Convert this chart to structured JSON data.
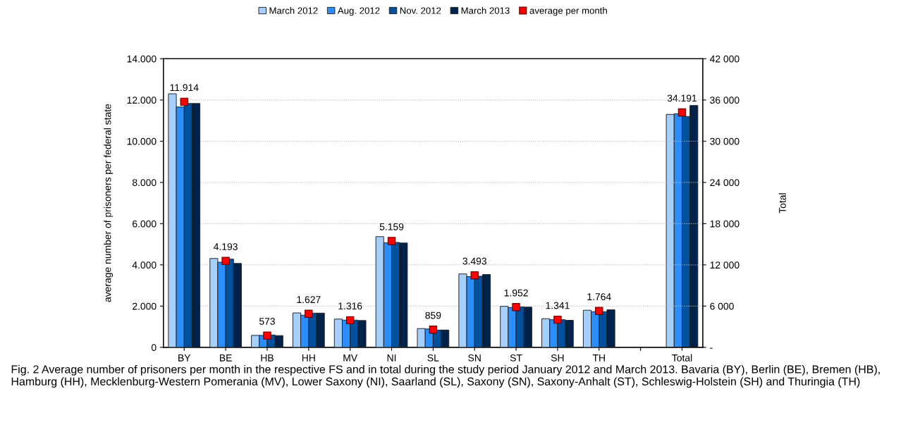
{
  "chart_data": {
    "type": "bar",
    "categories": [
      "BY",
      "BE",
      "HB",
      "HH",
      "MV",
      "NI",
      "SL",
      "SN",
      "ST",
      "SH",
      "TH",
      null,
      "Total"
    ],
    "ylabel": "average number of prisoners per federal state",
    "y2label": "Total",
    "ylim": [
      0,
      14000
    ],
    "yticks": [
      {
        "value": 0,
        "label": "0"
      },
      {
        "value": 2000,
        "label": "2.000"
      },
      {
        "value": 4000,
        "label": "4.000"
      },
      {
        "value": 6000,
        "label": "6.000"
      },
      {
        "value": 8000,
        "label": "8.000"
      },
      {
        "value": 10000,
        "label": "10.000"
      },
      {
        "value": 12000,
        "label": "12.000"
      },
      {
        "value": 14000,
        "label": "14.000"
      }
    ],
    "y2lim": [
      0,
      42000
    ],
    "y2ticks": [
      {
        "value": 0,
        "label": "-"
      },
      {
        "value": 6000,
        "label": "6 000"
      },
      {
        "value": 12000,
        "label": "12 000"
      },
      {
        "value": 18000,
        "label": "18 000"
      },
      {
        "value": 24000,
        "label": "24 000"
      },
      {
        "value": 30000,
        "label": "30 000"
      },
      {
        "value": 36000,
        "label": "36 000"
      },
      {
        "value": 42000,
        "label": "42 000"
      }
    ],
    "grid": "y",
    "legend": "top",
    "series": [
      {
        "name": "March 2012",
        "color": "#a6d0fb",
        "axis": "y",
        "values": [
          12300,
          4310,
          580,
          1670,
          1370,
          5370,
          910,
          3560,
          1990,
          1390,
          1800,
          null,
          null
        ]
      },
      {
        "name": "Aug. 2012",
        "color": "#2a8ffc",
        "axis": "y",
        "values": [
          11660,
          4130,
          580,
          1560,
          1320,
          5070,
          890,
          3430,
          1930,
          1340,
          1730,
          null,
          null
        ]
      },
      {
        "name": "Nov. 2012",
        "color": "#0050a0",
        "axis": "y",
        "values": [
          11830,
          4280,
          600,
          1660,
          1320,
          5090,
          840,
          3450,
          1960,
          1340,
          1730,
          null,
          null
        ]
      },
      {
        "name": "March 2013",
        "color": "#00224a",
        "axis": "y",
        "values": [
          11830,
          4070,
          570,
          1660,
          1300,
          5060,
          840,
          3530,
          1950,
          1310,
          1820,
          null,
          null
        ]
      },
      {
        "color": "#a6d0fb",
        "axis": "y2",
        "values": [
          null,
          null,
          null,
          null,
          null,
          null,
          null,
          null,
          null,
          null,
          null,
          null,
          33900
        ]
      },
      {
        "color": "#2a8ffc",
        "axis": "y2",
        "values": [
          null,
          null,
          null,
          null,
          null,
          null,
          null,
          null,
          null,
          null,
          null,
          null,
          34000
        ]
      },
      {
        "color": "#0050a0",
        "axis": "y2",
        "values": [
          null,
          null,
          null,
          null,
          null,
          null,
          null,
          null,
          null,
          null,
          null,
          null,
          33600
        ]
      },
      {
        "color": "#00224a",
        "axis": "y2",
        "values": [
          null,
          null,
          null,
          null,
          null,
          null,
          null,
          null,
          null,
          null,
          null,
          null,
          35200
        ]
      },
      {
        "name": "average per month",
        "type": "scatter",
        "marker": "square",
        "color": "#ff0000",
        "axis": "y",
        "values": [
          11914,
          4193,
          573,
          1627,
          1316,
          5159,
          859,
          3493,
          1952,
          1341,
          1764,
          null,
          null
        ],
        "value_labels": [
          "11.914",
          "4.193",
          "573",
          "1.627",
          "1.316",
          "5.159",
          "859",
          "3.493",
          "1.952",
          "1.341",
          "1.764",
          null,
          null
        ]
      },
      {
        "type": "scatter",
        "marker": "square",
        "color": "#ff0000",
        "axis": "y2",
        "values": [
          null,
          null,
          null,
          null,
          null,
          null,
          null,
          null,
          null,
          null,
          null,
          null,
          34191
        ],
        "value_labels": [
          null,
          null,
          null,
          null,
          null,
          null,
          null,
          null,
          null,
          null,
          null,
          null,
          "34.191"
        ]
      }
    ],
    "annotations": [
      "Fig. 2 Average number of prisoners per month in the respective FS and in total during the study period January 2012 and March 2013. Bavaria (BY), Berlin (BE), Bremen (HB), Hamburg (HH), Mecklenburg-Western Pomerania (MV), Lower Saxony (NI), Saarland (SL), Saxony (SN), Saxony-Anhalt (ST), Schleswig-Holstein (SH) and Thuringia (TH)"
    ]
  }
}
